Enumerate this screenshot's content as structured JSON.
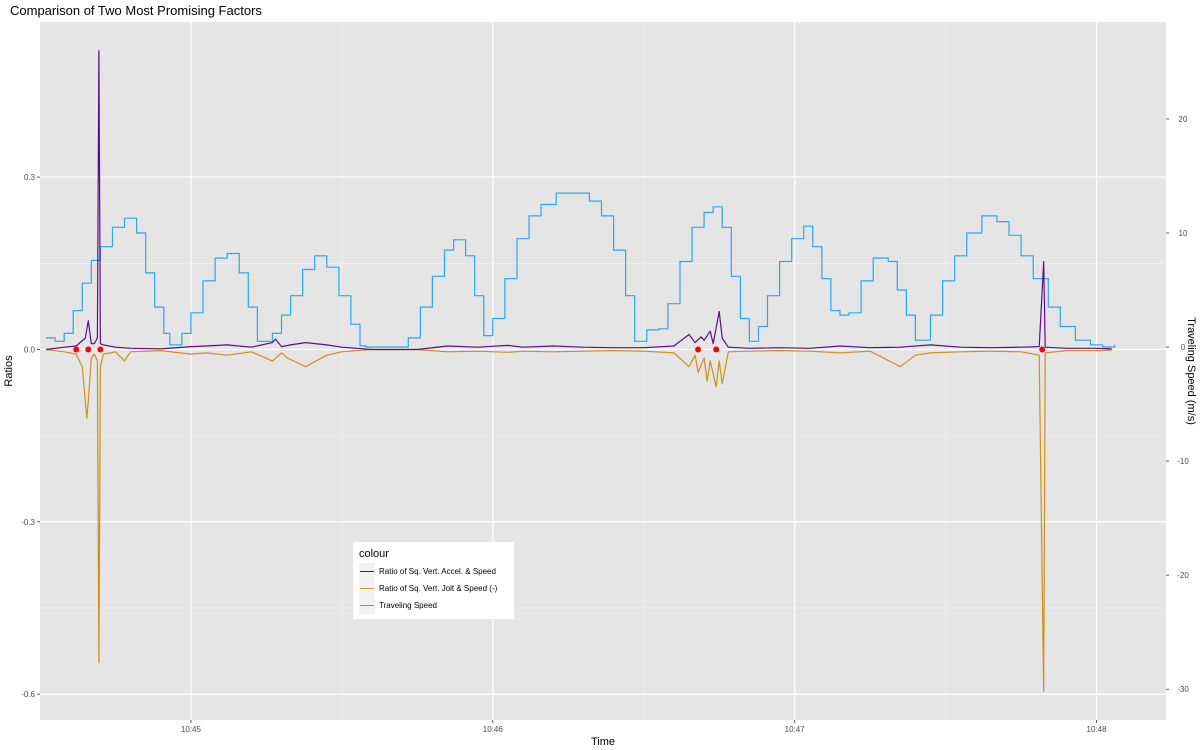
{
  "chart_data": {
    "type": "line",
    "title": "Comparison of Two Most Promising Factors",
    "xlabel": "Time",
    "ylabel": "Ratios",
    "y2label": "Traveling Speed (m/s)",
    "x_ticks": [
      "10:45",
      "10:46",
      "10:47",
      "10:48"
    ],
    "x_tick_values": [
      45,
      46,
      47,
      48
    ],
    "xlim": [
      44.5,
      48.23
    ],
    "y_ticks": [
      0.3,
      0.0,
      -0.3,
      -0.6
    ],
    "y_tick_labels": [
      "0.3",
      "0.0",
      "-0.3",
      "-0.6"
    ],
    "ylim": [
      -0.645,
      0.57
    ],
    "y2_ticks": [
      20,
      10,
      0,
      -10,
      -20,
      -30
    ],
    "y2_tick_labels": [
      "20",
      "10",
      "0",
      "-10",
      "-20",
      "-30"
    ],
    "y2lim": [
      -32.7,
      28.5
    ],
    "legend": {
      "title": "colour",
      "position": "bottom-left-center"
    },
    "grid": true,
    "colors": {
      "accel": "#5a0f8a",
      "jolt": "#d0901a",
      "speed": "#29a8f0",
      "markers": "#ff0000",
      "panel": "#e5e5e5"
    },
    "series": [
      {
        "name": "Ratio of Sq. Vert. Accel. & Speed",
        "axis": "left",
        "points": [
          [
            44.52,
            0.0
          ],
          [
            44.58,
            0.004
          ],
          [
            44.62,
            0.006
          ],
          [
            44.65,
            0.02
          ],
          [
            44.66,
            0.05
          ],
          [
            44.67,
            0.01
          ],
          [
            44.68,
            0.01
          ],
          [
            44.69,
            0.02
          ],
          [
            44.695,
            0.52
          ],
          [
            44.7,
            0.01
          ],
          [
            44.71,
            0.008
          ],
          [
            44.75,
            0.004
          ],
          [
            44.8,
            0.002
          ],
          [
            44.9,
            0.001
          ],
          [
            45.0,
            0.005
          ],
          [
            45.05,
            0.006
          ],
          [
            45.12,
            0.008
          ],
          [
            45.2,
            0.004
          ],
          [
            45.27,
            0.012
          ],
          [
            45.28,
            0.018
          ],
          [
            45.3,
            0.005
          ],
          [
            45.33,
            0.008
          ],
          [
            45.38,
            0.012
          ],
          [
            45.45,
            0.008
          ],
          [
            45.5,
            0.004
          ],
          [
            45.6,
            0.0
          ],
          [
            45.75,
            0.0
          ],
          [
            45.85,
            0.006
          ],
          [
            45.95,
            0.004
          ],
          [
            46.05,
            0.007
          ],
          [
            46.1,
            0.004
          ],
          [
            46.2,
            0.006
          ],
          [
            46.3,
            0.004
          ],
          [
            46.4,
            0.003
          ],
          [
            46.5,
            0.003
          ],
          [
            46.6,
            0.006
          ],
          [
            46.65,
            0.026
          ],
          [
            46.67,
            0.012
          ],
          [
            46.69,
            0.022
          ],
          [
            46.7,
            0.016
          ],
          [
            46.72,
            0.032
          ],
          [
            46.73,
            0.01
          ],
          [
            46.75,
            0.066
          ],
          [
            46.76,
            0.02
          ],
          [
            46.78,
            0.004
          ],
          [
            46.85,
            0.002
          ],
          [
            46.95,
            0.003
          ],
          [
            47.05,
            0.002
          ],
          [
            47.15,
            0.006
          ],
          [
            47.25,
            0.003
          ],
          [
            47.35,
            0.004
          ],
          [
            47.45,
            0.008
          ],
          [
            47.55,
            0.004
          ],
          [
            47.65,
            0.003
          ],
          [
            47.75,
            0.004
          ],
          [
            47.81,
            0.005
          ],
          [
            47.825,
            0.153
          ],
          [
            47.83,
            0.004
          ],
          [
            47.9,
            0.002
          ],
          [
            48.0,
            0.002
          ],
          [
            48.05,
            0.001
          ]
        ]
      },
      {
        "name": "Ratio of Sq. Vert. Jolt & Speed (-)",
        "axis": "left",
        "points": [
          [
            44.52,
            0.0
          ],
          [
            44.58,
            -0.004
          ],
          [
            44.62,
            -0.008
          ],
          [
            44.64,
            -0.03
          ],
          [
            44.655,
            -0.12
          ],
          [
            44.66,
            -0.09
          ],
          [
            44.67,
            -0.015
          ],
          [
            44.68,
            -0.008
          ],
          [
            44.69,
            -0.02
          ],
          [
            44.695,
            -0.545
          ],
          [
            44.7,
            -0.03
          ],
          [
            44.71,
            -0.008
          ],
          [
            44.75,
            -0.004
          ],
          [
            44.78,
            -0.02
          ],
          [
            44.8,
            -0.004
          ],
          [
            44.9,
            -0.002
          ],
          [
            45.0,
            -0.008
          ],
          [
            45.05,
            -0.006
          ],
          [
            45.12,
            -0.01
          ],
          [
            45.2,
            -0.004
          ],
          [
            45.27,
            -0.02
          ],
          [
            45.3,
            -0.006
          ],
          [
            45.32,
            -0.015
          ],
          [
            45.38,
            -0.03
          ],
          [
            45.45,
            -0.01
          ],
          [
            45.5,
            -0.004
          ],
          [
            45.6,
            0.0
          ],
          [
            45.75,
            0.0
          ],
          [
            45.85,
            -0.004
          ],
          [
            45.95,
            -0.003
          ],
          [
            46.05,
            -0.005
          ],
          [
            46.1,
            -0.003
          ],
          [
            46.2,
            -0.004
          ],
          [
            46.3,
            -0.003
          ],
          [
            46.4,
            -0.002
          ],
          [
            46.5,
            -0.003
          ],
          [
            46.6,
            -0.006
          ],
          [
            46.65,
            -0.03
          ],
          [
            46.67,
            -0.01
          ],
          [
            46.68,
            -0.04
          ],
          [
            46.7,
            -0.015
          ],
          [
            46.71,
            -0.055
          ],
          [
            46.72,
            -0.02
          ],
          [
            46.74,
            -0.065
          ],
          [
            46.75,
            -0.02
          ],
          [
            46.76,
            -0.06
          ],
          [
            46.78,
            -0.004
          ],
          [
            46.85,
            -0.003
          ],
          [
            46.95,
            -0.002
          ],
          [
            47.05,
            -0.003
          ],
          [
            47.15,
            -0.006
          ],
          [
            47.25,
            -0.003
          ],
          [
            47.35,
            -0.03
          ],
          [
            47.4,
            -0.01
          ],
          [
            47.45,
            -0.006
          ],
          [
            47.55,
            -0.004
          ],
          [
            47.65,
            -0.003
          ],
          [
            47.75,
            -0.004
          ],
          [
            47.81,
            -0.01
          ],
          [
            47.825,
            -0.595
          ],
          [
            47.83,
            -0.006
          ],
          [
            47.9,
            -0.002
          ],
          [
            48.0,
            -0.002
          ],
          [
            48.05,
            -0.001
          ]
        ]
      },
      {
        "name": "Traveling Speed",
        "axis": "right",
        "step": true,
        "points": [
          [
            44.52,
            0.8
          ],
          [
            44.55,
            0.5
          ],
          [
            44.58,
            1.2
          ],
          [
            44.61,
            3.2
          ],
          [
            44.64,
            5.6
          ],
          [
            44.67,
            7.6
          ],
          [
            44.7,
            8.8
          ],
          [
            44.74,
            10.5
          ],
          [
            44.78,
            11.3
          ],
          [
            44.82,
            10.0
          ],
          [
            44.85,
            6.5
          ],
          [
            44.88,
            3.5
          ],
          [
            44.91,
            1.2
          ],
          [
            44.93,
            0.2
          ],
          [
            44.97,
            1.2
          ],
          [
            45.0,
            3.0
          ],
          [
            45.04,
            5.8
          ],
          [
            45.08,
            7.8
          ],
          [
            45.12,
            8.2
          ],
          [
            45.16,
            6.5
          ],
          [
            45.19,
            3.5
          ],
          [
            45.22,
            0.5
          ],
          [
            45.27,
            1.2
          ],
          [
            45.3,
            2.8
          ],
          [
            45.33,
            4.5
          ],
          [
            45.37,
            6.8
          ],
          [
            45.41,
            8.0
          ],
          [
            45.45,
            7.0
          ],
          [
            45.49,
            4.5
          ],
          [
            45.53,
            2.0
          ],
          [
            45.56,
            0.1
          ],
          [
            45.58,
            0.0
          ],
          [
            45.7,
            0.0
          ],
          [
            45.72,
            0.8
          ],
          [
            45.76,
            3.5
          ],
          [
            45.8,
            6.2
          ],
          [
            45.84,
            8.5
          ],
          [
            45.87,
            9.4
          ],
          [
            45.91,
            8.0
          ],
          [
            45.94,
            4.5
          ],
          [
            45.97,
            1.0
          ],
          [
            46.0,
            2.5
          ],
          [
            46.04,
            6.0
          ],
          [
            46.08,
            9.5
          ],
          [
            46.12,
            11.5
          ],
          [
            46.16,
            12.5
          ],
          [
            46.21,
            13.5
          ],
          [
            46.26,
            13.5
          ],
          [
            46.32,
            12.8
          ],
          [
            46.36,
            11.5
          ],
          [
            46.4,
            8.5
          ],
          [
            46.44,
            4.5
          ],
          [
            46.47,
            0.5
          ],
          [
            46.51,
            1.5
          ],
          [
            46.55,
            1.6
          ],
          [
            46.58,
            3.8
          ],
          [
            46.62,
            7.5
          ],
          [
            46.66,
            10.5
          ],
          [
            46.7,
            11.8
          ],
          [
            46.73,
            12.3
          ],
          [
            46.76,
            10.5
          ],
          [
            46.79,
            6.2
          ],
          [
            46.82,
            2.5
          ],
          [
            46.85,
            0.5
          ],
          [
            46.88,
            1.8
          ],
          [
            46.91,
            4.5
          ],
          [
            46.95,
            7.5
          ],
          [
            46.99,
            9.5
          ],
          [
            47.03,
            10.6
          ],
          [
            47.06,
            8.8
          ],
          [
            47.09,
            6.0
          ],
          [
            47.12,
            3.2
          ],
          [
            47.15,
            2.8
          ],
          [
            47.18,
            3.0
          ],
          [
            47.22,
            5.8
          ],
          [
            47.26,
            7.8
          ],
          [
            47.31,
            7.5
          ],
          [
            47.34,
            5.0
          ],
          [
            47.37,
            2.8
          ],
          [
            47.4,
            0.6
          ],
          [
            47.45,
            2.8
          ],
          [
            47.49,
            5.8
          ],
          [
            47.53,
            8.0
          ],
          [
            47.57,
            10.0
          ],
          [
            47.62,
            11.5
          ],
          [
            47.67,
            11.0
          ],
          [
            47.71,
            9.8
          ],
          [
            47.75,
            8.0
          ],
          [
            47.79,
            6.0
          ],
          [
            47.84,
            3.5
          ],
          [
            47.88,
            1.8
          ],
          [
            47.93,
            0.6
          ],
          [
            47.98,
            0.2
          ],
          [
            48.02,
            0.0
          ],
          [
            48.06,
            0.2
          ]
        ]
      }
    ],
    "markers": [
      {
        "x": 44.62,
        "y": 0.0
      },
      {
        "x": 44.66,
        "y": 0.0
      },
      {
        "x": 44.7,
        "y": 0.0
      },
      {
        "x": 46.68,
        "y": 0.0
      },
      {
        "x": 46.74,
        "y": 0.0
      },
      {
        "x": 47.82,
        "y": 0.0
      }
    ]
  }
}
